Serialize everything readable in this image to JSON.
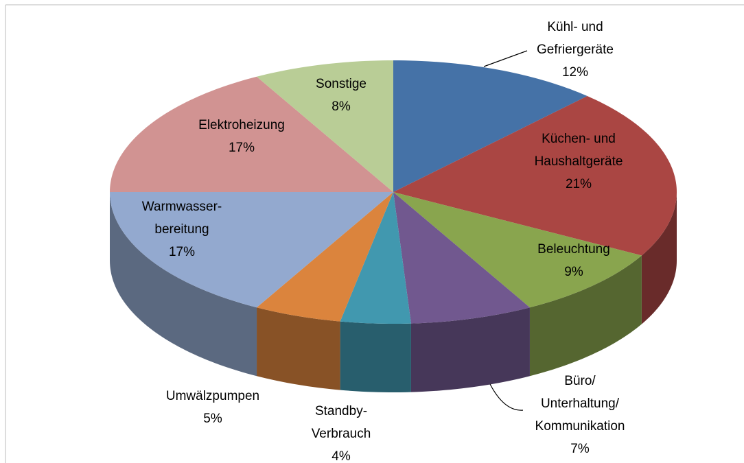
{
  "chart_data": {
    "type": "pie3d",
    "categories": [
      "Kühl- und\nGefriergeräte",
      "Küchen- und\nHaushaltgeräte",
      "Beleuchtung",
      "Büro/\nUnterhaltung/\nKommunikation",
      "Standby-\nVerbrauch",
      "Umwälzpumpen",
      "Warmwasser-\nbereitung",
      "Elektroheizung",
      "Sonstige"
    ],
    "values": [
      12,
      21,
      9,
      7,
      4,
      5,
      17,
      17,
      8
    ],
    "value_labels": [
      "12%",
      "21%",
      "9%",
      "7%",
      "4%",
      "5%",
      "17%",
      "17%",
      "8%"
    ],
    "colors": [
      "#4572a7",
      "#aa4643",
      "#89a54e",
      "#71588f",
      "#4198af",
      "#db843d",
      "#93a9cf",
      "#d19392",
      "#b9cd96"
    ]
  }
}
